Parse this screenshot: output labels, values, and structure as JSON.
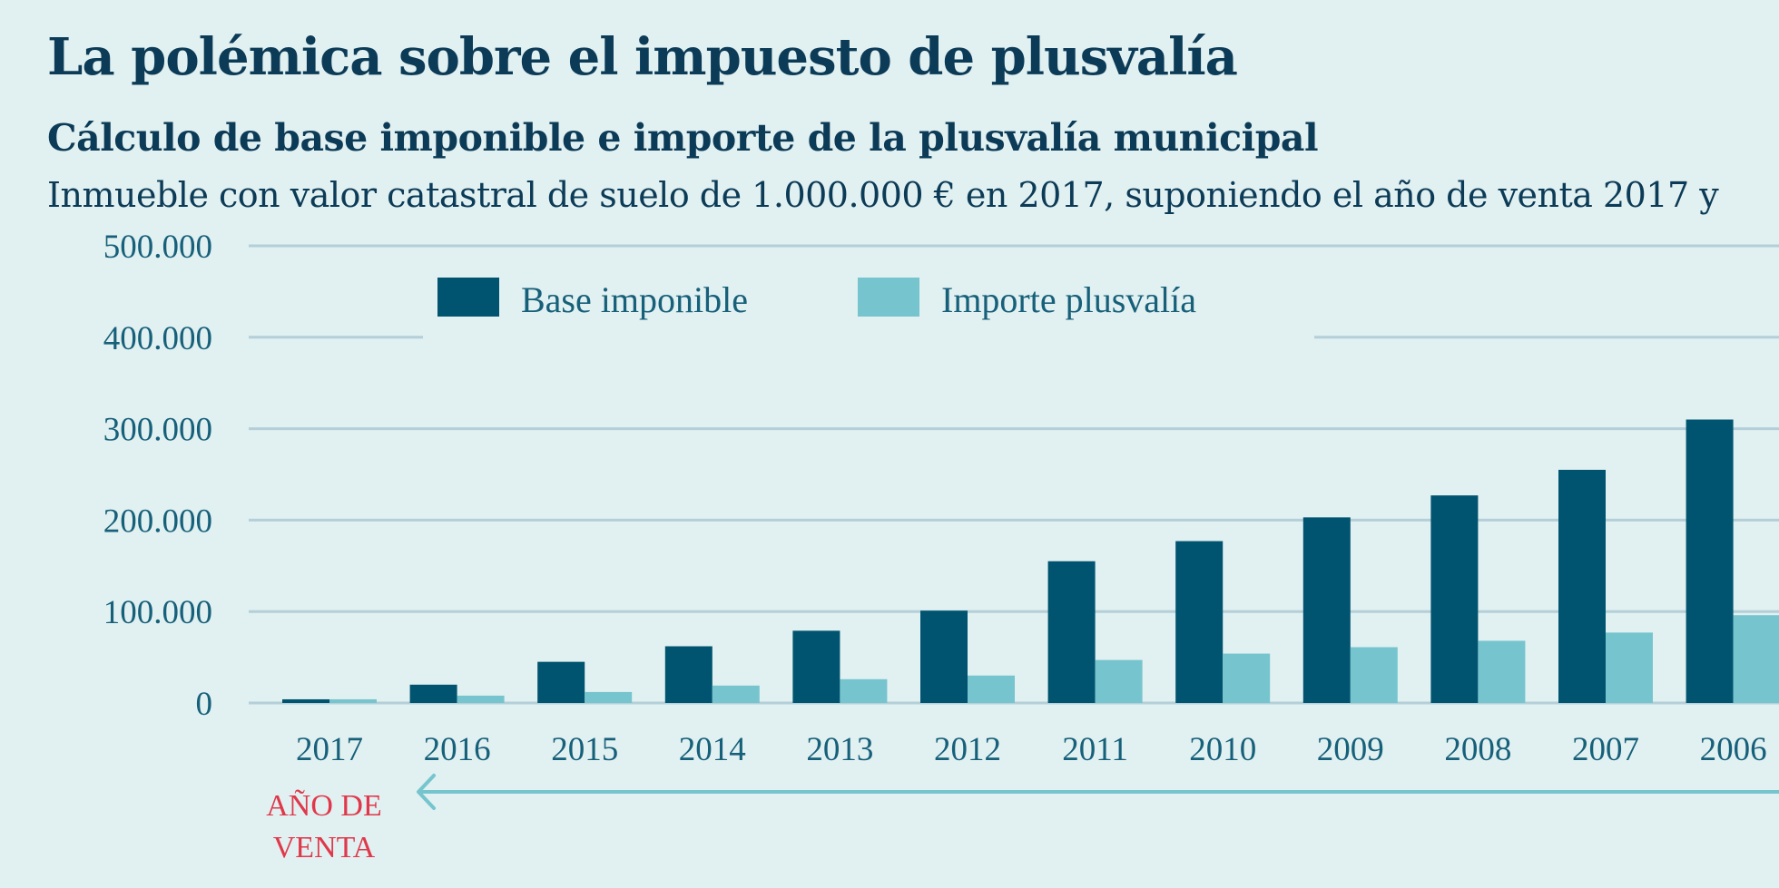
{
  "title": "La polémica sobre el impuesto de plusvalía",
  "subtitle": "Cálculo de base imponible e importe de la plusvalía municipal",
  "description": "Inmueble con valor catastral de suelo de 1.000.000 € en 2017, suponiendo el año de venta 2017 y",
  "annotation": {
    "line1": "AÑO DE",
    "line2": "VENTA"
  },
  "colors": {
    "base_imponible": "#005470",
    "importe_plusvalia": "#76c5ce",
    "background": "#e1f0f1",
    "grid": "#b4cfd8",
    "arrow": "#76c5ce",
    "annotation": "#e0384a"
  },
  "chart_data": {
    "type": "bar",
    "categories": [
      "2017",
      "2016",
      "2015",
      "2014",
      "2013",
      "2012",
      "2011",
      "2010",
      "2009",
      "2008",
      "2007",
      "2006"
    ],
    "series": [
      {
        "name": "Base imponible",
        "values": [
          4000,
          20000,
          45000,
          62000,
          79000,
          101000,
          155000,
          177000,
          203000,
          227000,
          255000,
          310000
        ]
      },
      {
        "name": "Importe plusvalía",
        "values": [
          4000,
          8000,
          12000,
          19000,
          26000,
          30000,
          47000,
          54000,
          61000,
          68000,
          77000,
          96000
        ]
      }
    ],
    "ylim": [
      0,
      500000
    ],
    "yticks": [
      0,
      100000,
      200000,
      300000,
      400000,
      500000
    ],
    "ytick_labels": [
      "0",
      "100.000",
      "200.000",
      "300.000",
      "400.000",
      "500.000"
    ],
    "xlabel": "",
    "ylabel": "",
    "grid": true,
    "legend_position": "top"
  }
}
